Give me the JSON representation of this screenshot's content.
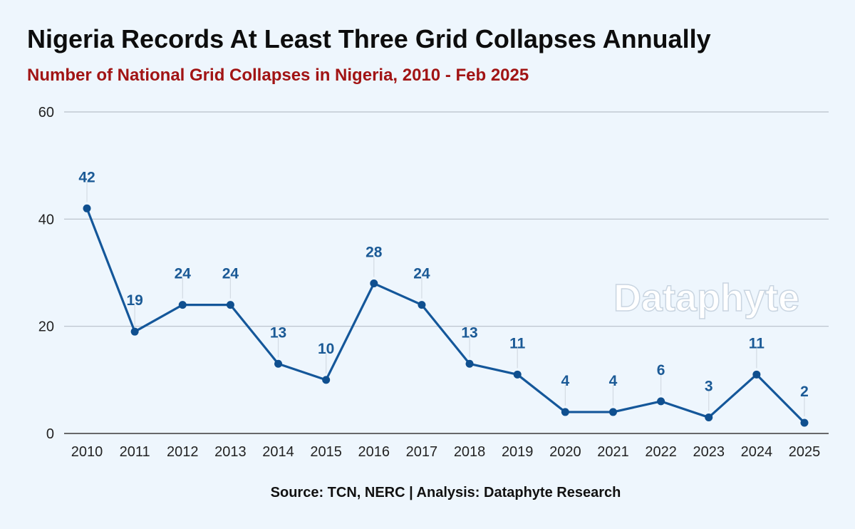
{
  "title": "Nigeria Records At Least Three Grid Collapses Annually",
  "subtitle": "Number of National Grid Collapses in Nigeria, 2010 - Feb 2025",
  "source": "Source: TCN, NERC | Analysis: Dataphyte Research",
  "watermark": "Dataphyte",
  "colors": {
    "background": "#eef6fd",
    "line": "#14579a",
    "marker": "#0f4f8f",
    "data_label": "#1b5a96",
    "subtitle": "#a11414",
    "grid": "#b7bfc8"
  },
  "chart_data": {
    "type": "line",
    "categories": [
      "2010",
      "2011",
      "2012",
      "2013",
      "2014",
      "2015",
      "2016",
      "2017",
      "2018",
      "2019",
      "2020",
      "2021",
      "2022",
      "2023",
      "2024",
      "2025"
    ],
    "values": [
      42,
      19,
      24,
      24,
      13,
      10,
      28,
      24,
      13,
      11,
      4,
      4,
      6,
      3,
      11,
      2
    ],
    "ylim": [
      0,
      60
    ],
    "yticks": [
      0,
      20,
      40,
      60
    ],
    "grid": true,
    "data_labels": true,
    "legend": false
  }
}
